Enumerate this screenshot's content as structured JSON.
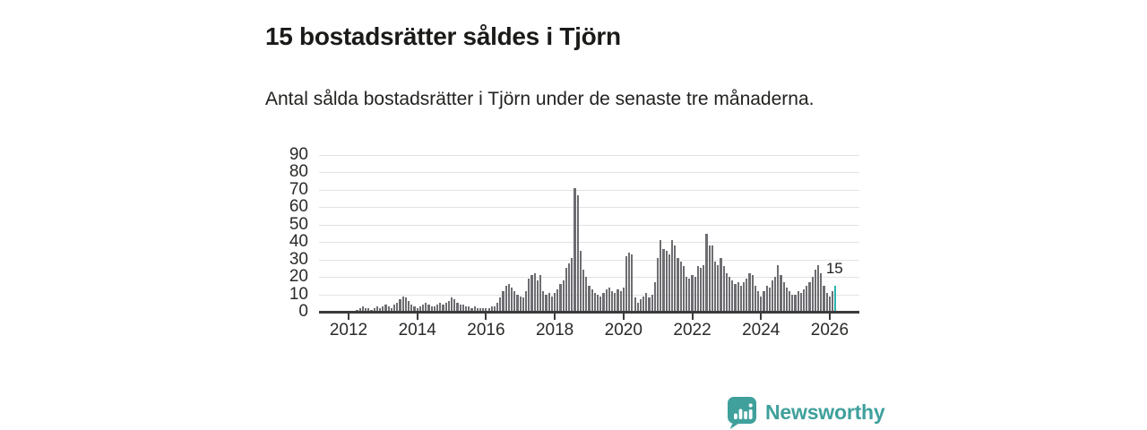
{
  "header": {
    "title": "15 bostadsrätter såldes i Tjörn",
    "subtitle": "Antal sålda bostadsrätter i Tjörn under de senaste tre månaderna."
  },
  "chart_data": {
    "type": "bar",
    "title": "15 bostadsrätter såldes i Tjörn",
    "subtitle": "Antal sålda bostadsrätter i Tjörn under de senaste tre månaderna.",
    "xlabel": "",
    "ylabel": "",
    "frequency": "monthly",
    "x_start": "2012-04",
    "x_end": "2026-03",
    "ylim": [
      0,
      90
    ],
    "yticks": [
      0,
      10,
      20,
      30,
      40,
      50,
      60,
      70,
      80,
      90
    ],
    "xticks": [
      2012,
      2014,
      2016,
      2018,
      2020,
      2022,
      2024,
      2026
    ],
    "grid": true,
    "legend": "none",
    "bar_color": "#6d6d72",
    "values": [
      1,
      2,
      3,
      2,
      2,
      1,
      2,
      3,
      2,
      3,
      4,
      3,
      2,
      4,
      5,
      7,
      9,
      8,
      6,
      4,
      3,
      2,
      3,
      4,
      5,
      4,
      3,
      3,
      4,
      5,
      4,
      5,
      6,
      8,
      7,
      5,
      4,
      4,
      3,
      3,
      2,
      3,
      2,
      2,
      2,
      2,
      2,
      3,
      3,
      5,
      8,
      12,
      15,
      16,
      14,
      12,
      10,
      9,
      8,
      12,
      19,
      21,
      22,
      18,
      21,
      12,
      10,
      11,
      9,
      11,
      13,
      16,
      18,
      25,
      28,
      31,
      71,
      67,
      35,
      24,
      20,
      15,
      13,
      11,
      10,
      9,
      11,
      13,
      14,
      12,
      11,
      13,
      12,
      14,
      32,
      34,
      33,
      8,
      5,
      7,
      9,
      11,
      8,
      10,
      17,
      31,
      41,
      36,
      35,
      33,
      41,
      38,
      31,
      29,
      26,
      20,
      19,
      21,
      20,
      26,
      25,
      27,
      45,
      38,
      38,
      29,
      27,
      31,
      26,
      22,
      20,
      18,
      16,
      17,
      15,
      17,
      19,
      22,
      21,
      15,
      12,
      9,
      12,
      15,
      14,
      18,
      20,
      27,
      21,
      17,
      14,
      12,
      10,
      10,
      12,
      11,
      13,
      15,
      17,
      20,
      24,
      27,
      22,
      15,
      11,
      9,
      12,
      15
    ],
    "highlight": {
      "position": "last",
      "value": 15,
      "label": "15",
      "color": "#2ab3ac"
    }
  },
  "footer": {
    "brand": "Newsworthy",
    "brand_color": "#3fa09c"
  },
  "colors": {
    "text_primary": "#1a1a18",
    "bar_gray": "#6d6d72",
    "highlight_teal": "#2ab3ac",
    "gridline": "#e2e2e2",
    "axis": "#3b3b3d"
  }
}
